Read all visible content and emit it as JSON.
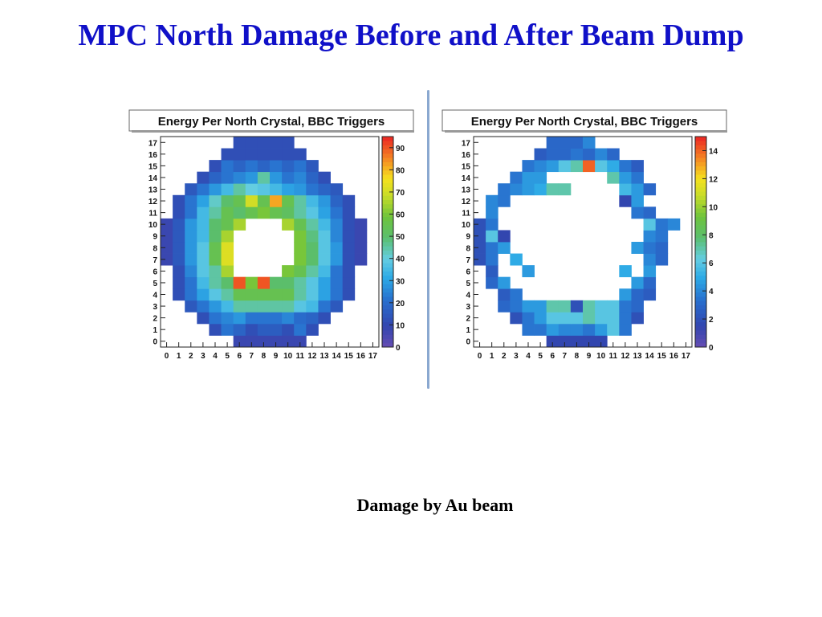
{
  "title": "MPC North Damage Before and After Beam Dump",
  "caption": "Damage by Au beam",
  "colors": {
    "title": "#1010c8",
    "divider": "#8aa8d0"
  },
  "chart_data": [
    {
      "type": "heatmap",
      "title": "Energy Per North Crystal, BBC Triggers",
      "x_ticks": [
        "0",
        "1",
        "2",
        "3",
        "4",
        "5",
        "6",
        "7",
        "8",
        "9",
        "10",
        "11",
        "12",
        "13",
        "14",
        "15",
        "16",
        "17"
      ],
      "y_ticks": [
        "0",
        "1",
        "2",
        "3",
        "4",
        "5",
        "6",
        "7",
        "8",
        "9",
        "10",
        "11",
        "12",
        "13",
        "14",
        "15",
        "16",
        "17"
      ],
      "zlim": [
        0,
        95
      ],
      "z_ticks": [
        0,
        10,
        20,
        30,
        40,
        50,
        60,
        70,
        80,
        90
      ],
      "grid": [
        [
          null,
          null,
          null,
          null,
          null,
          null,
          8,
          8,
          8,
          8,
          8,
          8,
          null,
          null,
          null,
          null,
          null,
          null
        ],
        [
          null,
          null,
          null,
          null,
          12,
          22,
          18,
          12,
          16,
          16,
          12,
          22,
          12,
          null,
          null,
          null,
          null,
          null
        ],
        [
          null,
          null,
          null,
          12,
          22,
          25,
          28,
          22,
          22,
          22,
          25,
          20,
          18,
          12,
          null,
          null,
          null,
          null
        ],
        [
          null,
          null,
          15,
          22,
          28,
          35,
          45,
          45,
          45,
          45,
          45,
          38,
          35,
          22,
          15,
          null,
          null,
          null
        ],
        [
          null,
          12,
          22,
          30,
          38,
          45,
          55,
          55,
          55,
          55,
          55,
          45,
          38,
          30,
          22,
          12,
          null,
          null
        ],
        [
          null,
          12,
          22,
          35,
          45,
          50,
          90,
          60,
          90,
          50,
          50,
          45,
          38,
          30,
          22,
          12,
          null,
          null
        ],
        [
          null,
          12,
          25,
          38,
          45,
          65,
          null,
          null,
          null,
          null,
          60,
          55,
          45,
          35,
          22,
          12,
          null,
          null
        ],
        [
          8,
          15,
          28,
          38,
          55,
          72,
          null,
          null,
          null,
          null,
          null,
          60,
          50,
          38,
          28,
          12,
          8,
          null
        ],
        [
          8,
          15,
          28,
          38,
          55,
          72,
          null,
          null,
          null,
          null,
          null,
          60,
          50,
          38,
          28,
          12,
          8,
          null
        ],
        [
          8,
          15,
          28,
          35,
          50,
          65,
          null,
          null,
          null,
          null,
          null,
          60,
          48,
          38,
          25,
          12,
          8,
          null
        ],
        [
          8,
          15,
          28,
          35,
          50,
          55,
          65,
          null,
          null,
          null,
          65,
          55,
          45,
          35,
          25,
          12,
          8,
          null
        ],
        [
          null,
          12,
          22,
          35,
          45,
          55,
          50,
          55,
          60,
          55,
          52,
          45,
          38,
          30,
          22,
          12,
          null,
          null
        ],
        [
          null,
          12,
          22,
          30,
          42,
          50,
          55,
          70,
          55,
          82,
          55,
          45,
          35,
          28,
          18,
          12,
          null,
          null
        ],
        [
          null,
          null,
          15,
          22,
          28,
          35,
          45,
          40,
          38,
          35,
          30,
          28,
          22,
          18,
          15,
          null,
          null,
          null
        ],
        [
          null,
          null,
          null,
          12,
          18,
          22,
          25,
          28,
          45,
          28,
          22,
          25,
          18,
          12,
          null,
          null,
          null,
          null
        ],
        [
          null,
          null,
          null,
          null,
          12,
          22,
          18,
          22,
          18,
          22,
          18,
          22,
          15,
          null,
          null,
          null,
          null,
          null
        ],
        [
          null,
          null,
          null,
          null,
          null,
          12,
          12,
          12,
          12,
          12,
          12,
          12,
          null,
          null,
          null,
          null,
          null,
          null
        ],
        [
          null,
          null,
          null,
          null,
          null,
          null,
          12,
          12,
          12,
          12,
          12,
          null,
          null,
          null,
          null,
          null,
          null,
          null
        ]
      ]
    },
    {
      "type": "heatmap",
      "title": "Energy Per North Crystal, BBC Triggers",
      "x_ticks": [
        "0",
        "1",
        "2",
        "3",
        "4",
        "5",
        "6",
        "7",
        "8",
        "9",
        "10",
        "11",
        "12",
        "13",
        "14",
        "15",
        "16",
        "17"
      ],
      "y_ticks": [
        "0",
        "1",
        "2",
        "3",
        "4",
        "5",
        "6",
        "7",
        "8",
        "9",
        "10",
        "11",
        "12",
        "13",
        "14",
        "15",
        "16",
        "17"
      ],
      "zlim": [
        0,
        15
      ],
      "z_ticks": [
        0,
        2,
        4,
        6,
        8,
        10,
        12,
        14
      ],
      "grid": [
        [
          null,
          null,
          null,
          null,
          null,
          null,
          1.5,
          1.5,
          1.5,
          1.5,
          1.5,
          null,
          null,
          null,
          null,
          null,
          null,
          null
        ],
        [
          null,
          null,
          null,
          null,
          3.5,
          3.5,
          4.5,
          4,
          4,
          3.5,
          4.5,
          6,
          3.5,
          null,
          null,
          null,
          null,
          null
        ],
        [
          null,
          null,
          null,
          2,
          3.5,
          4.5,
          6,
          6,
          6,
          7,
          6,
          6,
          3.5,
          2,
          null,
          null,
          null,
          null
        ],
        [
          null,
          null,
          3,
          3.5,
          4.5,
          4.5,
          7,
          7,
          2,
          7,
          6,
          6,
          3.5,
          3,
          null,
          null,
          null,
          null
        ],
        [
          null,
          null,
          2.5,
          3.5,
          null,
          null,
          null,
          null,
          null,
          null,
          null,
          null,
          4.5,
          3,
          2.5,
          null,
          null,
          null
        ],
        [
          null,
          3,
          4.5,
          null,
          null,
          null,
          null,
          null,
          null,
          null,
          null,
          null,
          null,
          4.5,
          3,
          null,
          null,
          null
        ],
        [
          null,
          2.5,
          null,
          null,
          4.5,
          null,
          null,
          null,
          null,
          null,
          null,
          null,
          5,
          null,
          4.5,
          null,
          null,
          null
        ],
        [
          2,
          3.5,
          null,
          5,
          null,
          null,
          null,
          null,
          null,
          null,
          null,
          null,
          null,
          null,
          4,
          3,
          null,
          null
        ],
        [
          2,
          3.5,
          4.5,
          null,
          null,
          null,
          null,
          null,
          null,
          null,
          null,
          null,
          null,
          4.5,
          3.5,
          3,
          null,
          null
        ],
        [
          2,
          6,
          1.5,
          null,
          null,
          null,
          null,
          null,
          null,
          null,
          null,
          null,
          null,
          null,
          4,
          3.5,
          null,
          null
        ],
        [
          2,
          3.5,
          null,
          null,
          null,
          null,
          null,
          null,
          null,
          null,
          null,
          null,
          null,
          null,
          6,
          3.5,
          4,
          null
        ],
        [
          null,
          4,
          null,
          null,
          null,
          null,
          null,
          null,
          null,
          null,
          null,
          null,
          null,
          3.5,
          3,
          null,
          null,
          null
        ],
        [
          null,
          4,
          3.5,
          null,
          null,
          null,
          null,
          null,
          null,
          null,
          null,
          null,
          1.5,
          4.5,
          null,
          null,
          null,
          null
        ],
        [
          null,
          null,
          3.5,
          4,
          4.5,
          5,
          7,
          7,
          null,
          null,
          null,
          null,
          5.5,
          4.5,
          3,
          null,
          null,
          null
        ],
        [
          null,
          null,
          null,
          3.5,
          4.5,
          4.5,
          null,
          null,
          null,
          null,
          null,
          7,
          4.5,
          3.5,
          null,
          null,
          null,
          null
        ],
        [
          null,
          null,
          null,
          null,
          3.5,
          4,
          4.5,
          6,
          7,
          14,
          6,
          5,
          3.5,
          2.5,
          null,
          null,
          null,
          null
        ],
        [
          null,
          null,
          null,
          null,
          null,
          2.5,
          3,
          3,
          3.5,
          3,
          4,
          3,
          null,
          null,
          null,
          null,
          null,
          null
        ],
        [
          null,
          null,
          null,
          null,
          null,
          null,
          3,
          3,
          3,
          4,
          null,
          null,
          null,
          null,
          null,
          null,
          null,
          null
        ]
      ]
    }
  ]
}
